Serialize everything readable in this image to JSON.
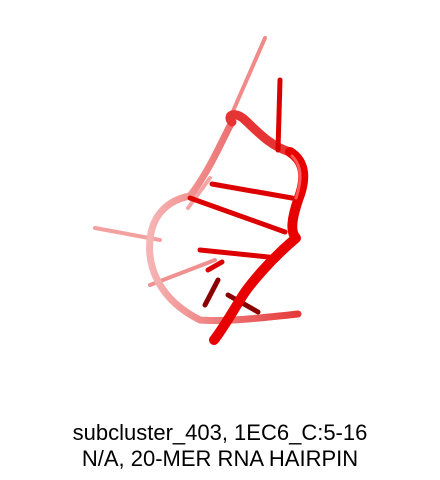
{
  "caption": {
    "line1": "subcluster_403, 1EC6_C:5-16",
    "line2": "N/A, 20-MER RNA HAIRPIN"
  },
  "figure": {
    "subject": "rna-hairpin-cartoon",
    "colors": {
      "backbone": "#ee0000",
      "backbone_faded": "#f08a8a",
      "base_dark": "#8a0000",
      "background": "#ffffff"
    }
  }
}
